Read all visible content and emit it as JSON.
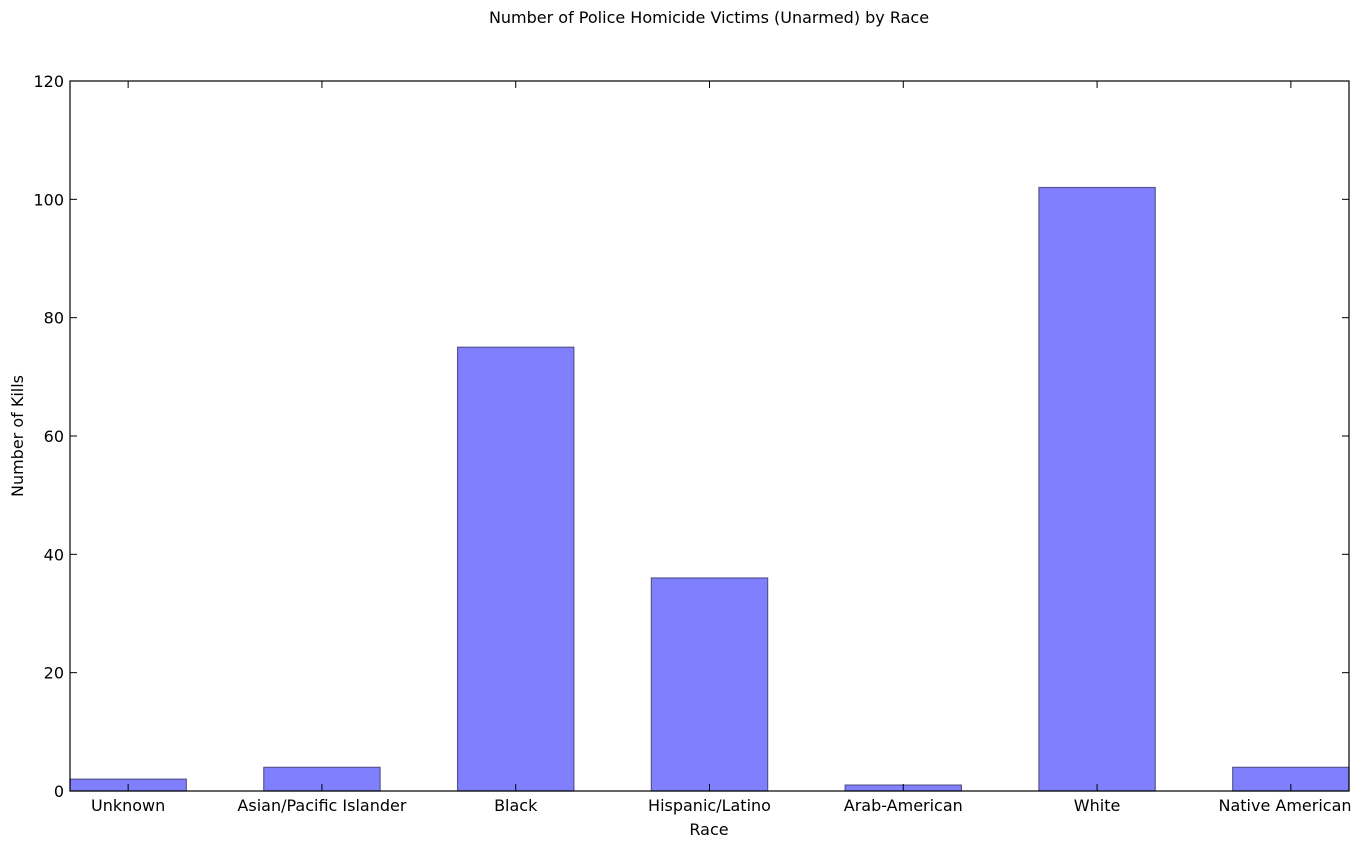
{
  "chart_data": {
    "type": "bar",
    "title": "Number of Police Homicide Victims (Unarmed) by Race",
    "xlabel": "Race",
    "ylabel": "Number of Kills",
    "categories": [
      "Unknown",
      "Asian/Pacific Islander",
      "Black",
      "Hispanic/Latino",
      "Arab-American",
      "White",
      "Native American"
    ],
    "values": [
      2,
      4,
      75,
      36,
      1,
      102,
      4
    ],
    "ylim": [
      0,
      120
    ],
    "yticks": [
      0,
      20,
      40,
      60,
      80,
      100,
      120
    ],
    "grid": false,
    "bar_color": "#8080ff",
    "bar_edge_color": "#55558f"
  }
}
